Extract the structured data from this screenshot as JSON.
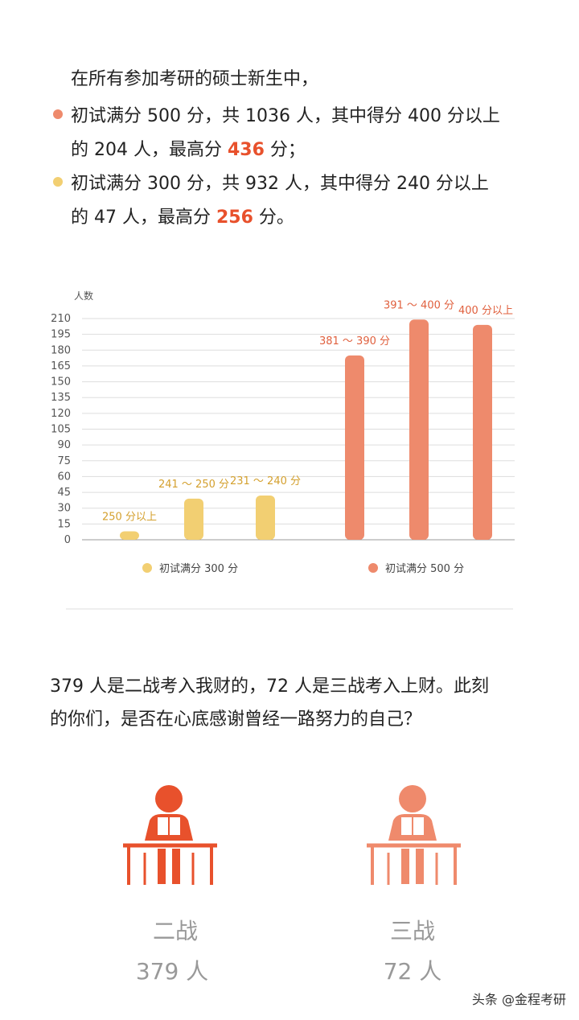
{
  "intro": "在所有参加考研的硕士新生中，",
  "bullets": [
    {
      "line1": "初试满分 500 分，共 1036 人，其中得分 400 分以上",
      "lead": "的 204 人，最高分 ",
      "highlight": "436",
      "tail": " 分；"
    },
    {
      "line1": "初试满分 300 分，共 932 人，其中得分 240 分以上",
      "lead": "的 47 人，最高分 ",
      "highlight": "256",
      "tail": " 分。"
    }
  ],
  "chart_data": {
    "type": "bar",
    "y_label": "人数",
    "categories": [
      "250 分以上",
      "241 ～ 250 分",
      "231 ～ 240 分",
      "381 ～ 390 分",
      "391 ～ 400 分",
      "400 分以上"
    ],
    "series": [
      {
        "name": "初试满分 300 分",
        "color": "#f2cf72",
        "values": [
          8,
          39,
          42,
          null,
          null,
          null
        ]
      },
      {
        "name": "初试满分 500 分",
        "color": "#ee8a6c",
        "values": [
          null,
          null,
          null,
          175,
          209,
          204
        ]
      }
    ],
    "ylim": [
      0,
      210
    ],
    "yticks": [
      0,
      15,
      30,
      45,
      60,
      75,
      90,
      105,
      120,
      135,
      150,
      165,
      180,
      195,
      210
    ],
    "grid": true,
    "legend": "bottom"
  },
  "paragraph": [
    "379 人是二战考入我财的，72 人是三战考入上财。此刻",
    "的你们，是否在心底感谢曾经一路努力的自己？"
  ],
  "cards": [
    {
      "label": "二战",
      "count": "379 人"
    },
    {
      "label": "三战",
      "count": "72 人"
    }
  ],
  "watermark": "头条 @金程考研"
}
